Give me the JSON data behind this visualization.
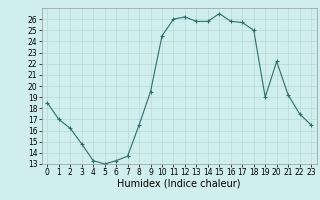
{
  "x": [
    0,
    1,
    2,
    3,
    4,
    5,
    6,
    7,
    8,
    9,
    10,
    11,
    12,
    13,
    14,
    15,
    16,
    17,
    18,
    19,
    20,
    21,
    22,
    23
  ],
  "y": [
    18.5,
    17.0,
    16.2,
    14.8,
    13.3,
    13.0,
    13.3,
    13.7,
    16.5,
    19.5,
    24.5,
    26.0,
    26.2,
    25.8,
    25.8,
    26.5,
    25.8,
    25.7,
    25.0,
    19.0,
    22.2,
    19.2,
    17.5,
    16.5
  ],
  "xlabel": "Humidex (Indice chaleur)",
  "ylim": [
    13,
    27
  ],
  "xlim": [
    -0.5,
    23.5
  ],
  "yticks": [
    13,
    14,
    15,
    16,
    17,
    18,
    19,
    20,
    21,
    22,
    23,
    24,
    25,
    26
  ],
  "xticks": [
    0,
    1,
    2,
    3,
    4,
    5,
    6,
    7,
    8,
    9,
    10,
    11,
    12,
    13,
    14,
    15,
    16,
    17,
    18,
    19,
    20,
    21,
    22,
    23
  ],
  "line_color": "#2d6e6e",
  "marker": "+",
  "bg_color": "#d0eeee",
  "grid_color": "#b8d8d8",
  "tick_fontsize": 5.5,
  "xlabel_fontsize": 7
}
